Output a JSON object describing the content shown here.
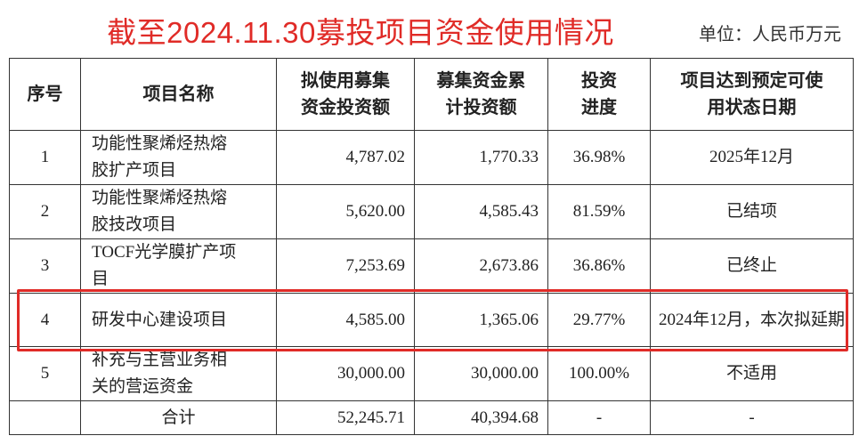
{
  "header": {
    "title": "截至2024.11.30募投项目资金使用情况",
    "unit": "单位：人民币万元"
  },
  "table": {
    "columns": [
      "序号",
      "项目名称",
      "拟使用募集资金投资额",
      "募集资金累计投资额",
      "投资进度",
      "项目达到预定可使用状态日期"
    ],
    "rows": [
      [
        "1",
        "功能性聚烯烃热熔胶扩产项目",
        "4,787.02",
        "1,770.33",
        "36.98%",
        "2025年12月"
      ],
      [
        "2",
        "功能性聚烯烃热熔胶技改项目",
        "5,620.00",
        "4,585.43",
        "81.59%",
        "已结项"
      ],
      [
        "3",
        "TOCF光学膜扩产项目",
        "7,253.69",
        "2,673.86",
        "36.86%",
        "已终止"
      ],
      [
        "4",
        "研发中心建设项目",
        "4,585.00",
        "1,365.06",
        "29.77%",
        "2024年12月，本次拟延期"
      ],
      [
        "5",
        "补充与主营业务相关的营运资金",
        "30,000.00",
        "30,000.00",
        "100.00%",
        "不适用"
      ]
    ],
    "total": [
      "合计",
      "52,245.71",
      "40,394.68",
      "-",
      "-"
    ]
  }
}
